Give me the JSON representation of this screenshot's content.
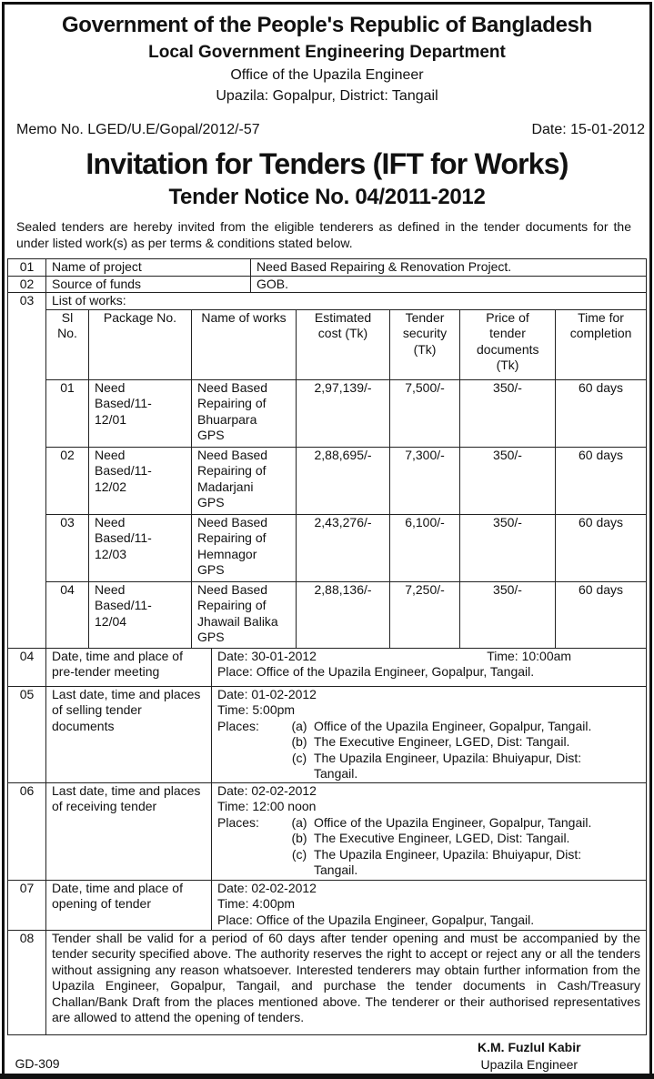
{
  "header": {
    "line1": "Government of the People's Republic of Bangladesh",
    "line2": "Local Government Engineering Department",
    "line3": "Office of the Upazila Engineer",
    "line4": "Upazila: Gopalpur, District: Tangail",
    "memo": "Memo No. LGED/U.E/Gopal/2012/-57",
    "date": "Date: 15-01-2012",
    "title": "Invitation for Tenders (IFT for Works)",
    "notice": "Tender Notice No. 04/2011-2012",
    "intro": "Sealed tenders are hereby invited from the eligible tenderers as defined in the tender documents for the under listed work(s) as per terms & conditions stated below."
  },
  "rows": {
    "r01": {
      "no": "01",
      "label": "Name of project",
      "value": "Need Based Repairing & Renovation Project."
    },
    "r02": {
      "no": "02",
      "label": "Source of funds",
      "value": "GOB."
    },
    "r03": {
      "no": "03",
      "label": "List of works:"
    },
    "works_header": [
      "Sl No.",
      "Package No.",
      "Name of works",
      "Estimated cost (Tk)",
      "Tender security (Tk)",
      "Price of tender documents (Tk)",
      "Time for completion"
    ],
    "works": [
      {
        "sl": "01",
        "pkg": "Need Based/11-12/01",
        "name": "Need Based Repairing of Bhuarpara GPS",
        "cost": "2,97,139/-",
        "security": "7,500/-",
        "price": "350/-",
        "time": "60 days"
      },
      {
        "sl": "02",
        "pkg": "Need Based/11-12/02",
        "name": "Need Based Repairing of Madarjani GPS",
        "cost": "2,88,695/-",
        "security": "7,300/-",
        "price": "350/-",
        "time": "60 days"
      },
      {
        "sl": "03",
        "pkg": "Need Based/11-12/03",
        "name": "Need Based Repairing of Hemnagor GPS",
        "cost": "2,43,276/-",
        "security": "6,100/-",
        "price": "350/-",
        "time": "60 days"
      },
      {
        "sl": "04",
        "pkg": "Need Based/11-12/04",
        "name": "Need Based Repairing of Jhawail Balika GPS",
        "cost": "2,88,136/-",
        "security": "7,250/-",
        "price": "350/-",
        "time": "60 days"
      }
    ],
    "r04": {
      "no": "04",
      "label": "Date, time and place of pre-tender meeting",
      "date": "Date: 30-01-2012",
      "time": "Time: 10:00am",
      "place": "Place: Office of the Upazila Engineer, Gopalpur, Tangail."
    },
    "r05": {
      "no": "05",
      "label": "Last date, time and places of selling tender documents",
      "date": "Date: 01-02-2012",
      "time": "Time: 5:00pm",
      "places_label": "Places:",
      "places": [
        {
          "l": "(a)",
          "v": "Office of the Upazila Engineer, Gopalpur, Tangail."
        },
        {
          "l": "(b)",
          "v": "The Executive Engineer, LGED, Dist: Tangail."
        },
        {
          "l": "(c)",
          "v": "The Upazila Engineer, Upazila: Bhuiyapur, Dist: Tangail."
        }
      ]
    },
    "r06": {
      "no": "06",
      "label": "Last date, time and places of receiving tender",
      "date": "Date: 02-02-2012",
      "time": "Time: 12:00 noon",
      "places_label": "Places:",
      "places": [
        {
          "l": "(a)",
          "v": "Office of the Upazila Engineer, Gopalpur, Tangail."
        },
        {
          "l": "(b)",
          "v": "The Executive Engineer, LGED, Dist: Tangail."
        },
        {
          "l": "(c)",
          "v": "The Upazila Engineer, Upazila: Bhuiyapur, Dist: Tangail."
        }
      ]
    },
    "r07": {
      "no": "07",
      "label": "Date, time and place of opening of tender",
      "date": "Date: 02-02-2012",
      "time": "Time: 4:00pm",
      "place": "Place: Office of the Upazila Engineer, Gopalpur, Tangail."
    },
    "r08": {
      "no": "08",
      "text": "Tender shall be valid for a period of 60 days after tender opening and must be accompanied by the tender security specified above. The authority reserves the right to accept or reject any or all the tenders without assigning any reason whatsoever. Interested tenderers may obtain further information from the Upazila Engineer, Gopalpur, Tangail, and purchase the tender documents in Cash/Treasury Challan/Bank Draft from the places mentioned above. The tenderer or their authorised representatives are allowed to attend the opening of tenders."
    }
  },
  "footer": {
    "code": "GD-309",
    "signatory": "K.M. Fuzlul Kabir",
    "designation": "Upazila Engineer"
  }
}
